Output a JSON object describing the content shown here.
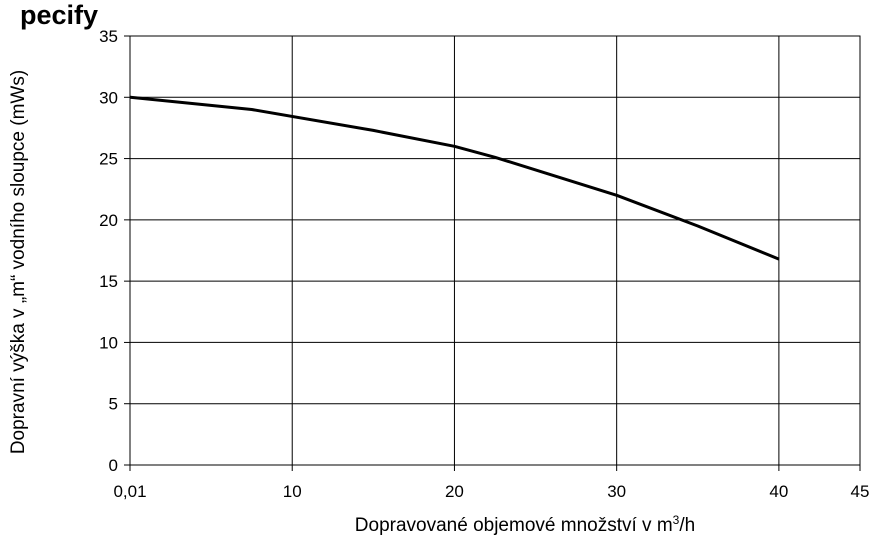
{
  "heading": "pecify",
  "chart_data": {
    "type": "line",
    "xlabel": "Dopravované objemové množství v m",
    "xlabel_sup": "3",
    "xlabel_tail": "/h",
    "ylabel": "Dopravní výška v „m“ vodního sloupce (mWs)",
    "x_tick_values": [
      0,
      10,
      20,
      30,
      40,
      45
    ],
    "x_tick_labels": [
      "0,01",
      "10",
      "20",
      "30",
      "40",
      "45"
    ],
    "y_tick_values": [
      0,
      5,
      10,
      15,
      20,
      25,
      30,
      35
    ],
    "xlim": [
      0,
      45
    ],
    "ylim": [
      0,
      35
    ],
    "grid": true,
    "series": [
      {
        "x": [
          0.01,
          7.5,
          15,
          20,
          22.5,
          30,
          35,
          40
        ],
        "y": [
          30,
          29,
          27.3,
          26,
          25.1,
          22,
          19.5,
          16.8
        ]
      }
    ],
    "line_color": "#000000",
    "grid_color": "#000000"
  }
}
